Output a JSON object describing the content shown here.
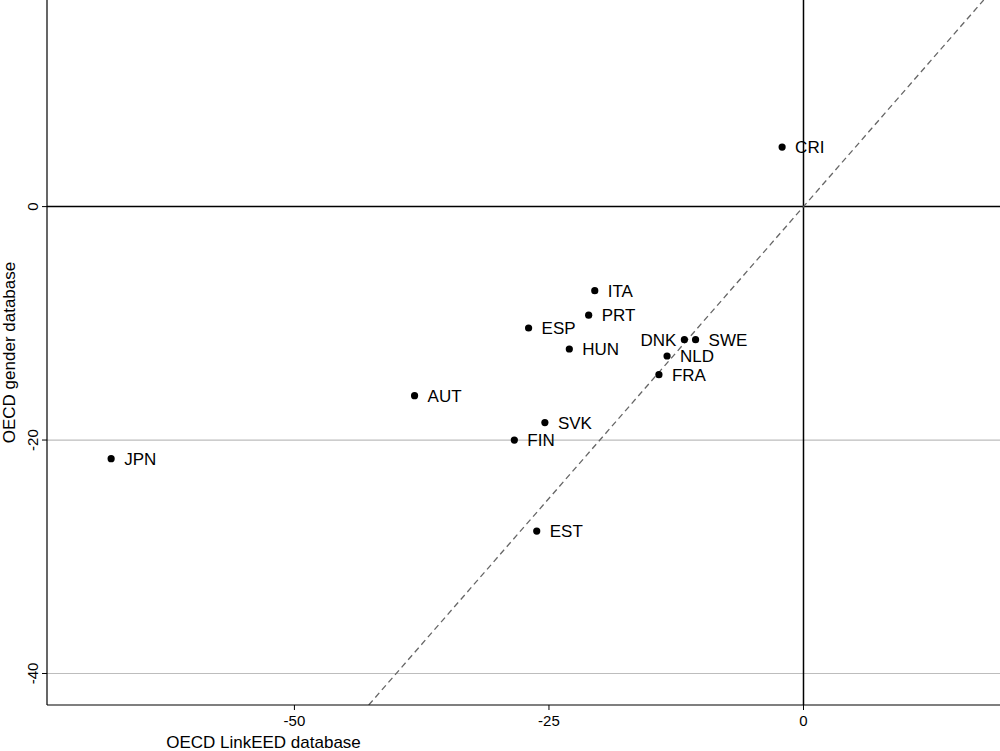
{
  "chart_data": {
    "type": "scatter",
    "x_label": "OECD LinkEED database",
    "y_label": "OECD gender database",
    "x": [
      -2.1,
      -20.5,
      -21.1,
      -27.0,
      -23.0,
      -38.2,
      -68.0,
      -25.4,
      -28.4,
      -26.2,
      -13.4,
      -14.2,
      -11.7,
      -10.6
    ],
    "series": [
      {
        "color": "#000000",
        "marker": "circle",
        "labels": [
          "CRI",
          "ITA",
          "PRT",
          "ESP",
          "HUN",
          "AUT",
          "JPN",
          "SVK",
          "FIN",
          "EST",
          "NLD",
          "FRA",
          "DNK",
          "SWE"
        ],
        "values": [
          5.1,
          -7.2,
          -9.3,
          -10.4,
          -12.2,
          -16.2,
          -21.6,
          -18.5,
          -20.0,
          -27.8,
          -12.8,
          -14.4,
          -11.4,
          -11.4
        ]
      }
    ],
    "xlim": [
      -74.3,
      19.3
    ],
    "ylim": [
      -42.7,
      17.7
    ],
    "xticks": [
      -50,
      -25,
      0
    ],
    "yticks": [
      -40,
      -20,
      0
    ],
    "grid": true
  }
}
